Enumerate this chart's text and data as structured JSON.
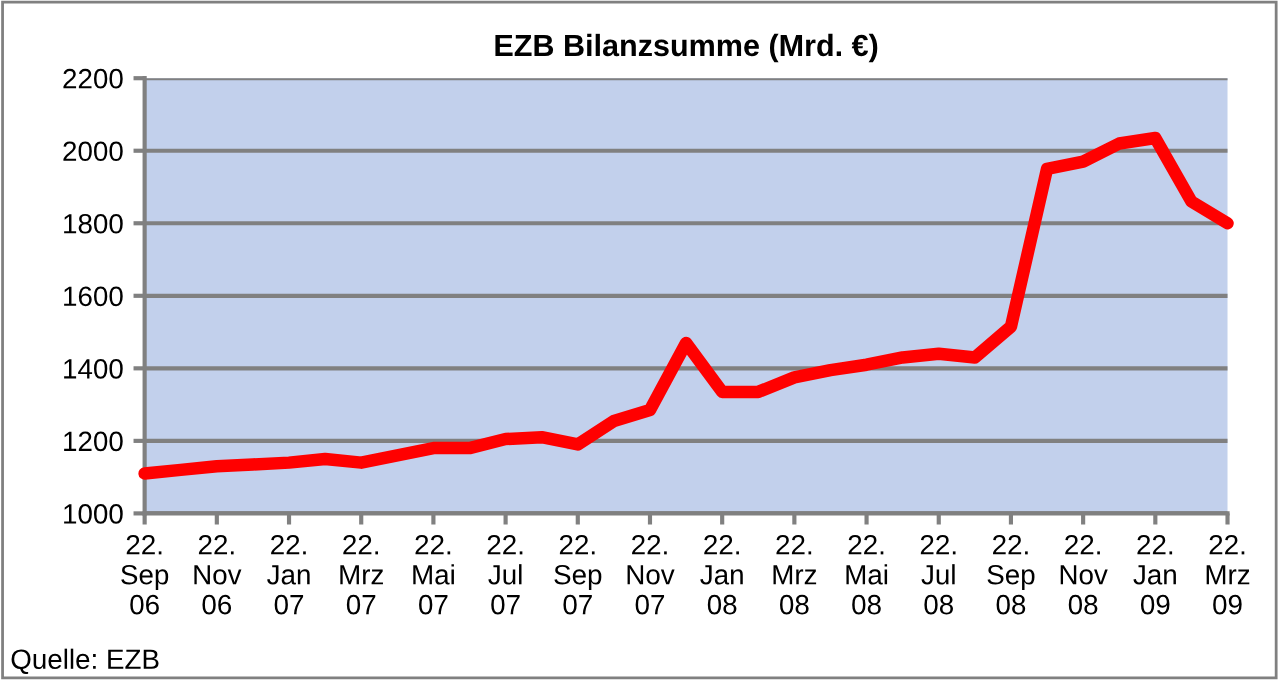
{
  "chart_data": {
    "type": "line",
    "title": "EZB Bilanzsumme (Mrd. €)",
    "categories": [
      "22.\nSep\n06",
      null,
      "22.\nNov\n06",
      null,
      "22.\nJan\n07",
      null,
      "22.\nMrz\n07",
      null,
      "22.\nMai\n07",
      null,
      "22.\nJul\n07",
      null,
      "22.\nSep\n07",
      null,
      "22.\nNov\n07",
      null,
      "22.\nJan\n08",
      null,
      "22.\nMrz\n08",
      null,
      "22.\nMai\n08",
      null,
      "22.\nJul\n08",
      null,
      "22.\nSep\n08",
      null,
      "22.\nNov\n08",
      null,
      "22.\nJan\n09",
      null,
      "22.\nMrz\n09"
    ],
    "series": [
      {
        "color": "#ff0000",
        "values": [
          1110,
          1120,
          1130,
          1135,
          1140,
          1150,
          1140,
          1160,
          1180,
          1180,
          1205,
          1210,
          1190,
          1255,
          1285,
          1470,
          1335,
          1335,
          1375,
          1395,
          1410,
          1430,
          1440,
          1430,
          1515,
          1950,
          1970,
          2020,
          2035,
          1860,
          1800
        ]
      }
    ],
    "ylim": [
      1000,
      2200
    ],
    "yticks": [
      1000,
      1200,
      1400,
      1600,
      1800,
      2000,
      2200
    ],
    "grid": "y",
    "legend": false,
    "marker": "none",
    "line_style": "solid",
    "annotations": [
      "Quelle: EZB"
    ]
  }
}
